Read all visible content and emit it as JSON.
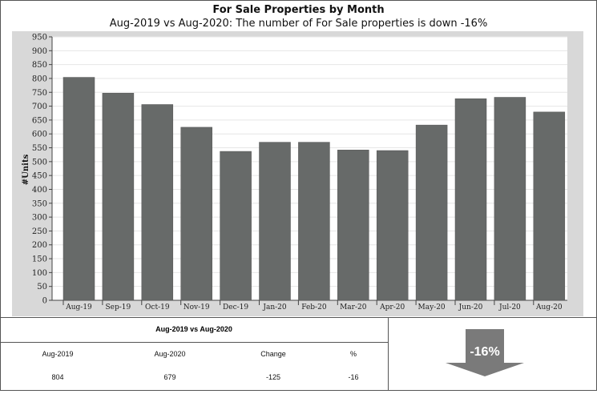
{
  "chart_data": {
    "type": "bar",
    "title": "For Sale Properties by Month",
    "subtitle": "Aug-2019 vs Aug-2020: The number of For Sale properties is down -16%",
    "ylabel": "#Units",
    "ylim": [
      0,
      950
    ],
    "yticks": [
      0,
      50,
      100,
      150,
      200,
      250,
      300,
      350,
      400,
      450,
      500,
      550,
      600,
      650,
      700,
      750,
      800,
      850,
      900,
      950
    ],
    "categories": [
      "Aug-19",
      "Sep-19",
      "Oct-19",
      "Nov-19",
      "Dec-19",
      "Jan-20",
      "Feb-20",
      "Mar-20",
      "Apr-20",
      "May-20",
      "Jun-20",
      "Jul-20",
      "Aug-20"
    ],
    "values": [
      804,
      747,
      706,
      624,
      537,
      570,
      570,
      542,
      540,
      632,
      727,
      732,
      679
    ],
    "bar_color": "#676a69",
    "grid": true
  },
  "summary": {
    "heading": "Aug-2019 vs Aug-2020",
    "columns": [
      "Aug-2019",
      "Aug-2020",
      "Change",
      "%"
    ],
    "row": [
      "804",
      "679",
      "-125",
      "-16"
    ]
  },
  "indicator": {
    "label": "-16%",
    "direction": "down",
    "color": "#7a7a7a"
  }
}
